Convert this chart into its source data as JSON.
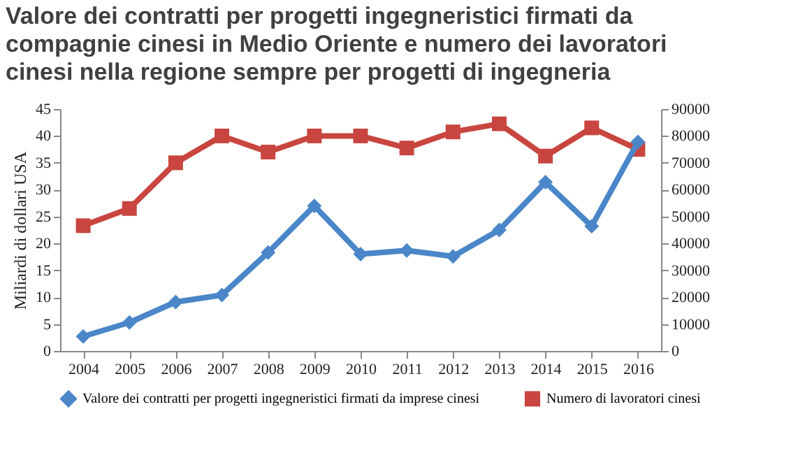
{
  "chart_data": {
    "type": "line",
    "title": "Valore dei contratti per progetti ingegneristici firmati da compagnie cinesi in Medio Oriente e numero dei lavoratori cinesi nella regione sempre per progetti di ingegneria",
    "ylabel": "Miliardi di dollari USA",
    "categories": [
      "2004",
      "2005",
      "2006",
      "2007",
      "2008",
      "2009",
      "2010",
      "2011",
      "2012",
      "2013",
      "2014",
      "2015",
      "2016"
    ],
    "series": [
      {
        "name": "Valore dei contratti per progetti ingegneristici firmati da imprese cinesi",
        "color": "#4a86c8",
        "marker": "diamond",
        "values": [
          2.7,
          5.3,
          9.1,
          10.4,
          18.3,
          27,
          18,
          18.7,
          17.6,
          22.5,
          31.4,
          23.2,
          38.9
        ]
      },
      {
        "name": "Numero di lavoratori cinesi",
        "color": "#c8463f",
        "marker": "square",
        "axis": "y2",
        "values": [
          46600,
          53000,
          70000,
          80000,
          74000,
          80000,
          80000,
          75500,
          81500,
          84500,
          72500,
          83000,
          75000
        ]
      }
    ],
    "ylim": [
      0,
      45
    ],
    "yticks": [
      0,
      5,
      10,
      15,
      20,
      25,
      30,
      35,
      40,
      45
    ],
    "y2lim": [
      0,
      90000
    ],
    "y2ticks": [
      0,
      10000,
      20000,
      30000,
      40000,
      50000,
      60000,
      70000,
      80000,
      90000
    ],
    "legend": "bottom",
    "grid": false
  }
}
